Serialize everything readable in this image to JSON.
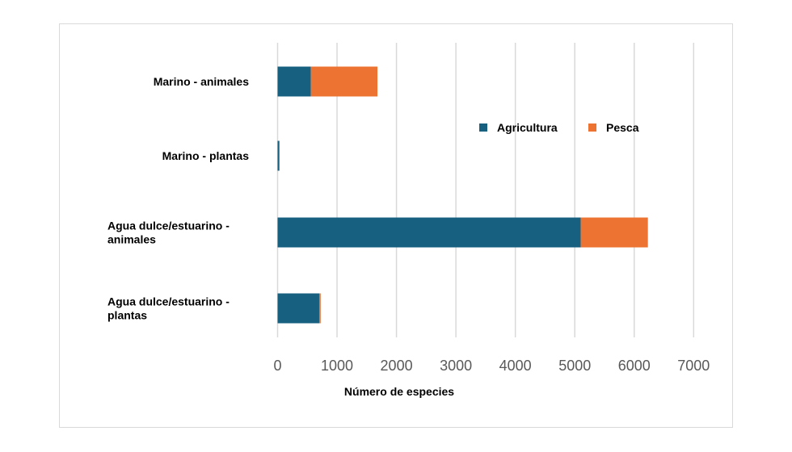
{
  "chart_data": {
    "type": "bar",
    "orientation": "horizontal",
    "stacked": true,
    "categories": [
      [
        "Marino - animales"
      ],
      [
        "Marino - plantas"
      ],
      [
        "Agua dulce/estuarino -",
        "animales"
      ],
      [
        "Agua dulce/estuarino -",
        "plantas"
      ]
    ],
    "series": [
      {
        "name": "Agricultura",
        "color": "#17607f",
        "values": [
          560,
          30,
          5100,
          700
        ]
      },
      {
        "name": "Pesca",
        "color": "#ed7332",
        "values": [
          1120,
          0,
          1130,
          25
        ]
      }
    ],
    "xlabel": "Número de especies",
    "xlim": [
      0,
      7000
    ],
    "xticks": [
      0,
      1000,
      2000,
      3000,
      4000,
      5000,
      6000,
      7000
    ],
    "grid": "vertical",
    "legend": "top-right"
  }
}
